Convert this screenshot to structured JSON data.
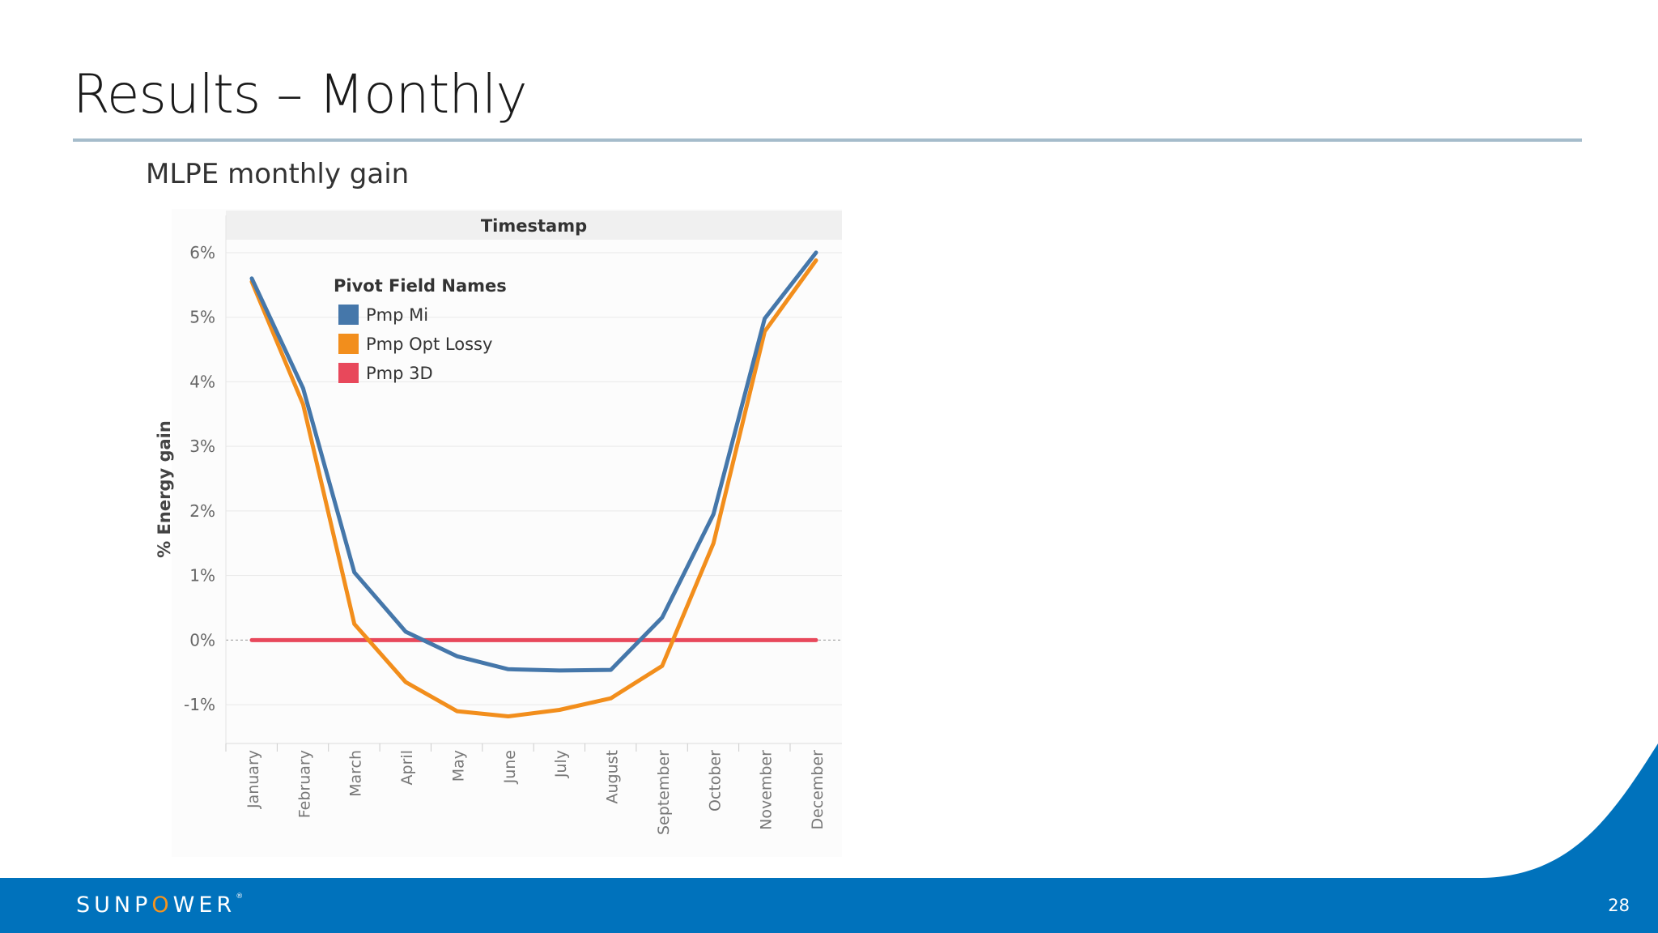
{
  "slide": {
    "title": "Results – Monthly",
    "page_number": "28",
    "logo": {
      "pre": "SUNP",
      "o": "O",
      "post": "WER",
      "mark": "®"
    }
  },
  "colors": {
    "pmp_mi": "#4577aa",
    "pmp_opt_lossy": "#f28e1c",
    "pmp_3d": "#e8485b",
    "title_rule": "#a5bccb",
    "footer": "#0072bc",
    "logo_o": "#f7941d"
  },
  "chart_data": {
    "type": "line",
    "title": "MLPE monthly gain",
    "header": "Timestamp",
    "xlabel": "",
    "ylabel": "% Energy gain",
    "ylim": [
      -1.6,
      6.2
    ],
    "yticks": [
      -1,
      0,
      1,
      2,
      3,
      4,
      5,
      6
    ],
    "ytick_labels": [
      "-1%",
      "0%",
      "1%",
      "2%",
      "3%",
      "4%",
      "5%",
      "6%"
    ],
    "grid": true,
    "legend_title": "Pivot Field Names",
    "legend_position": "top-left",
    "categories": [
      "January",
      "February",
      "March",
      "April",
      "May",
      "June",
      "July",
      "August",
      "September",
      "October",
      "November",
      "December"
    ],
    "series": [
      {
        "name": "Pmp Mi",
        "color": "#4577aa",
        "values": [
          5.6,
          3.9,
          1.05,
          0.13,
          -0.25,
          -0.45,
          -0.47,
          -0.46,
          0.35,
          1.95,
          4.98,
          6.0
        ]
      },
      {
        "name": "Pmp Opt Lossy",
        "color": "#f28e1c",
        "values": [
          5.55,
          3.65,
          0.25,
          -0.65,
          -1.1,
          -1.18,
          -1.08,
          -0.9,
          -0.4,
          1.5,
          4.78,
          5.88
        ]
      },
      {
        "name": "Pmp 3D",
        "color": "#e8485b",
        "values": [
          0,
          0,
          0,
          0,
          0,
          0,
          0,
          0,
          0,
          0,
          0,
          0
        ]
      }
    ]
  }
}
